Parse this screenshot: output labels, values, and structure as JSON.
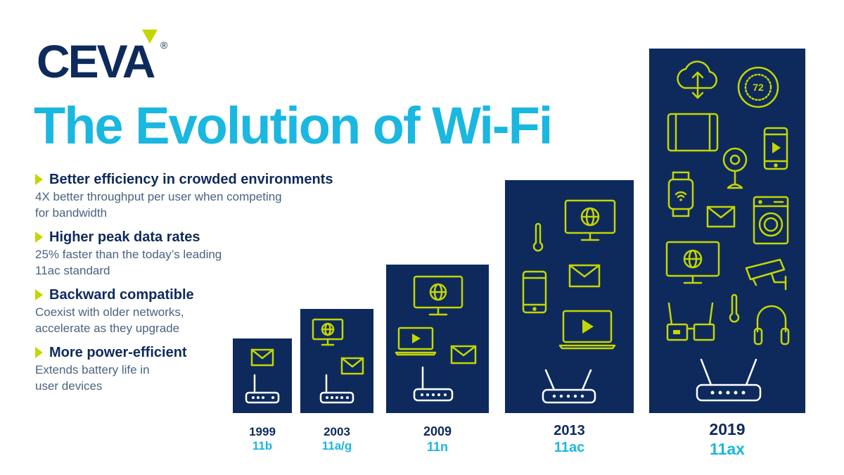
{
  "brand": {
    "name": "CEVA",
    "registered": "®"
  },
  "title": "The Evolution of Wi-Fi",
  "features": [
    {
      "heading": "Better efficiency in crowded environments",
      "desc1": "4X better throughput per user when competing",
      "desc2": "for bandwidth"
    },
    {
      "heading": "Higher peak data rates",
      "desc1": "25% faster than the today’s leading",
      "desc2": "11ac standard"
    },
    {
      "heading": "Backward compatible",
      "desc1": "Coexist with older networks,",
      "desc2": "accelerate as they upgrade"
    },
    {
      "heading": "More power-efficient",
      "desc1": "Extends battery life in",
      "desc2": "user devices"
    }
  ],
  "generations": [
    {
      "year": "1999",
      "standard": "11b"
    },
    {
      "year": "2003",
      "standard": "11a/g"
    },
    {
      "year": "2009",
      "standard": "11n"
    },
    {
      "year": "2013",
      "standard": "11ac"
    },
    {
      "year": "2019",
      "standard": "11ax"
    }
  ],
  "thermostat_reading": "72",
  "colors": {
    "navy": "#0e2a5c",
    "cyan": "#1ab7e0",
    "lime": "#c4d600",
    "grey_text": "#4a6381"
  }
}
